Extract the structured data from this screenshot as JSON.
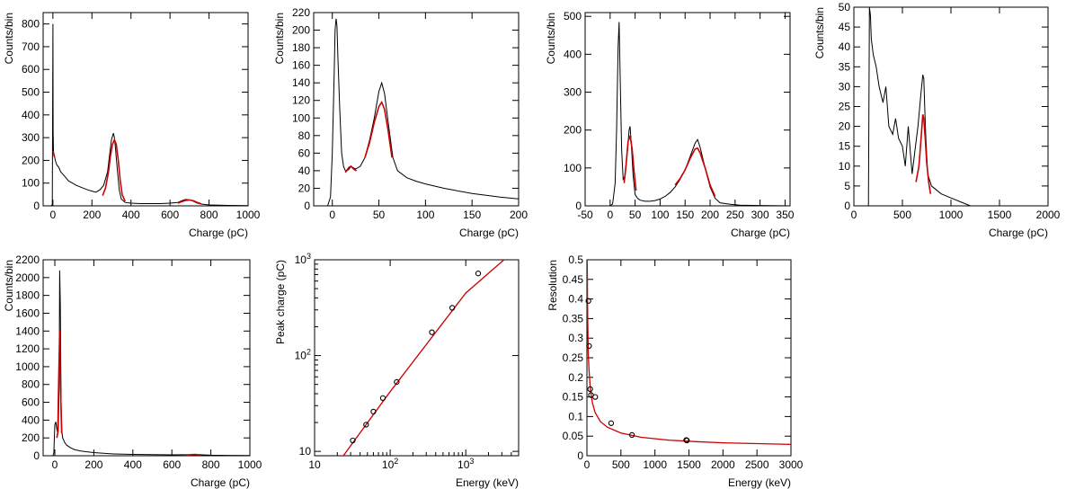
{
  "chart_data": [
    {
      "type": "line",
      "xlabel": "Charge (pC)",
      "ylabel": "Counts/bin",
      "xlim": [
        -50,
        1000
      ],
      "ylim": [
        0,
        850
      ],
      "x_ticks": [
        0,
        200,
        400,
        600,
        800,
        1000
      ],
      "y_ticks": [
        0,
        100,
        200,
        300,
        400,
        500,
        600,
        700,
        800
      ],
      "series": [
        {
          "role": "histogram",
          "color": "#000000",
          "x": [
            -10,
            -3,
            0,
            1,
            3,
            5,
            8,
            12,
            20,
            30,
            40,
            60,
            80,
            100,
            120,
            150,
            180,
            200,
            220,
            240,
            260,
            280,
            290,
            300,
            310,
            315,
            320,
            330,
            340,
            350,
            370,
            400,
            450,
            500,
            550,
            600,
            640,
            660,
            680,
            700,
            720,
            740,
            760,
            800,
            900,
            1000
          ],
          "y": [
            0,
            5,
            800,
            330,
            240,
            230,
            220,
            200,
            180,
            170,
            150,
            130,
            110,
            100,
            90,
            80,
            70,
            65,
            60,
            70,
            90,
            150,
            220,
            290,
            320,
            300,
            260,
            160,
            70,
            30,
            15,
            12,
            10,
            10,
            10,
            12,
            15,
            22,
            28,
            26,
            20,
            12,
            8,
            4,
            2,
            1
          ]
        },
        {
          "role": "fit",
          "color": "#cc0000",
          "x": [
            255,
            270,
            285,
            295,
            305,
            315,
            325,
            335,
            345,
            355,
            370
          ],
          "y": [
            45,
            80,
            150,
            220,
            270,
            290,
            270,
            200,
            110,
            50,
            20
          ]
        },
        {
          "role": "fit",
          "color": "#cc0000",
          "x": [
            640,
            660,
            680,
            700,
            720,
            740,
            760
          ],
          "y": [
            12,
            18,
            24,
            26,
            22,
            15,
            9
          ]
        },
        {
          "role": "fit",
          "color": "#cc0000",
          "x": [
            1,
            3,
            5,
            8
          ],
          "y": [
            240,
            230,
            225,
            215
          ]
        }
      ]
    },
    {
      "type": "line",
      "xlabel": "Charge (pC)",
      "ylabel": "Counts/bin",
      "xlim": [
        -20,
        200
      ],
      "ylim": [
        0,
        220
      ],
      "x_ticks": [
        0,
        50,
        100,
        150,
        200
      ],
      "y_ticks": [
        0,
        20,
        40,
        60,
        80,
        100,
        120,
        140,
        160,
        180,
        200,
        220
      ],
      "series": [
        {
          "role": "histogram",
          "color": "#000000",
          "x": [
            -20,
            -5,
            -2,
            0,
            2,
            3,
            4,
            5,
            6,
            8,
            10,
            12,
            14,
            16,
            18,
            20,
            25,
            30,
            35,
            40,
            45,
            50,
            53,
            56,
            60,
            65,
            70,
            80,
            90,
            100,
            120,
            150,
            180,
            200
          ],
          "y": [
            0,
            0,
            10,
            60,
            150,
            200,
            213,
            205,
            170,
            110,
            60,
            45,
            40,
            40,
            42,
            45,
            42,
            45,
            55,
            75,
            100,
            130,
            140,
            128,
            95,
            55,
            40,
            32,
            28,
            25,
            20,
            14,
            10,
            8
          ]
        },
        {
          "role": "fit",
          "color": "#cc0000",
          "x": [
            14,
            16,
            18,
            20,
            22,
            24,
            26
          ],
          "y": [
            38,
            41,
            44,
            45,
            43,
            41,
            40
          ]
        },
        {
          "role": "fit",
          "color": "#cc0000",
          "x": [
            35,
            40,
            45,
            50,
            53,
            56,
            60,
            64
          ],
          "y": [
            55,
            72,
            95,
            113,
            118,
            110,
            85,
            55
          ]
        }
      ]
    },
    {
      "type": "line",
      "xlabel": "Charge (pC)",
      "ylabel": "Counts/bin",
      "xlim": [
        -50,
        360
      ],
      "ylim": [
        0,
        510
      ],
      "x_ticks": [
        -50,
        0,
        50,
        100,
        150,
        200,
        250,
        300,
        350
      ],
      "y_ticks": [
        0,
        100,
        200,
        300,
        400,
        500
      ],
      "series": [
        {
          "role": "histogram",
          "color": "#000000",
          "x": [
            -50,
            0,
            5,
            10,
            13,
            16,
            18,
            20,
            23,
            26,
            30,
            35,
            38,
            40,
            42,
            46,
            50,
            55,
            60,
            70,
            80,
            90,
            100,
            110,
            120,
            130,
            140,
            150,
            160,
            170,
            175,
            180,
            190,
            200,
            210,
            220,
            240,
            260,
            300,
            360
          ],
          "y": [
            0,
            0,
            5,
            60,
            200,
            420,
            485,
            350,
            150,
            70,
            80,
            150,
            200,
            210,
            170,
            80,
            30,
            20,
            15,
            12,
            12,
            14,
            18,
            25,
            35,
            50,
            70,
            95,
            130,
            165,
            175,
            155,
            100,
            50,
            20,
            8,
            4,
            2,
            1,
            0
          ]
        },
        {
          "role": "fit",
          "color": "#cc0000",
          "x": [
            28,
            32,
            36,
            40,
            44,
            48,
            52
          ],
          "y": [
            60,
            110,
            170,
            185,
            150,
            90,
            40
          ]
        },
        {
          "role": "fit",
          "color": "#cc0000",
          "x": [
            130,
            140,
            150,
            160,
            170,
            175,
            180,
            190,
            200,
            210
          ],
          "y": [
            55,
            72,
            95,
            125,
            150,
            152,
            140,
            100,
            55,
            25
          ]
        }
      ]
    },
    {
      "type": "line",
      "xlabel": "Charge (pC)",
      "ylabel": "Counts/bin",
      "xlim": [
        0,
        2000
      ],
      "ylim": [
        0,
        50
      ],
      "x_ticks": [
        0,
        500,
        1000,
        1500,
        2000
      ],
      "y_ticks": [
        0,
        5,
        10,
        15,
        20,
        25,
        30,
        35,
        40,
        45,
        50
      ],
      "series": [
        {
          "role": "histogram",
          "color": "#000000",
          "x": [
            0,
            150,
            160,
            170,
            180,
            200,
            230,
            260,
            300,
            330,
            360,
            400,
            430,
            460,
            500,
            530,
            560,
            600,
            630,
            660,
            690,
            710,
            720,
            730,
            740,
            760,
            800,
            850,
            900,
            1000,
            1100,
            1200,
            1500,
            2000
          ],
          "y": [
            0,
            0,
            50,
            48,
            42,
            38,
            35,
            30,
            26,
            30,
            20,
            18,
            22,
            17,
            15,
            10,
            20,
            8,
            14,
            20,
            28,
            33,
            32,
            25,
            18,
            8,
            5,
            4,
            3,
            2,
            1,
            0,
            0,
            0
          ]
        },
        {
          "role": "fit",
          "color": "#cc0000",
          "x": [
            640,
            670,
            695,
            710,
            720,
            735,
            750,
            770,
            790
          ],
          "y": [
            6,
            10,
            18,
            23,
            22,
            17,
            11,
            6,
            3
          ]
        }
      ]
    },
    {
      "type": "line",
      "xlabel": "Charge (pC)",
      "ylabel": "Counts/bin",
      "xlim": [
        -60,
        1000
      ],
      "ylim": [
        0,
        2200
      ],
      "x_ticks": [
        0,
        200,
        400,
        600,
        800,
        1000
      ],
      "y_ticks": [
        0,
        200,
        400,
        600,
        800,
        1000,
        1200,
        1400,
        1600,
        1800,
        2000,
        2200
      ],
      "series": [
        {
          "role": "histogram",
          "color": "#000000",
          "x": [
            -60,
            -10,
            -5,
            0,
            5,
            10,
            15,
            18,
            22,
            25,
            28,
            32,
            36,
            40,
            50,
            60,
            80,
            100,
            130,
            160,
            200,
            300,
            400,
            600,
            700,
            720,
            800,
            1000
          ],
          "y": [
            0,
            0,
            30,
            350,
            380,
            300,
            250,
            280,
            800,
            2080,
            1700,
            600,
            280,
            200,
            150,
            120,
            90,
            70,
            55,
            45,
            35,
            20,
            15,
            10,
            12,
            14,
            6,
            2
          ]
        },
        {
          "role": "fit",
          "color": "#cc0000",
          "x": [
            10,
            15,
            20,
            25,
            30,
            35
          ],
          "y": [
            200,
            260,
            900,
            1400,
            700,
            250
          ]
        },
        {
          "role": "fit",
          "color": "#cc0000",
          "x": [
            680,
            700,
            720,
            740
          ],
          "y": [
            8,
            12,
            14,
            9
          ]
        }
      ]
    },
    {
      "type": "scatter",
      "xlabel": "Energy (keV)",
      "ylabel": "Peak charge (pC)",
      "xscale": "log",
      "yscale": "log",
      "xlim": [
        10,
        5000
      ],
      "ylim": [
        9,
        1000
      ],
      "x_ticks": [
        10,
        100,
        1000
      ],
      "x_tick_labels": [
        "10",
        "10^2",
        "10^3"
      ],
      "y_ticks": [
        10,
        100,
        1000
      ],
      "y_tick_labels": [
        "10",
        "10^2",
        "10^3"
      ],
      "points": {
        "x": [
          32,
          48,
          60,
          80,
          122,
          356,
          662,
          1460
        ],
        "y": [
          13,
          19,
          26,
          36,
          53,
          175,
          315,
          720
        ]
      },
      "fit": {
        "color": "#cc0000",
        "x": [
          24,
          100,
          1000,
          3200
        ],
        "y": [
          9,
          42,
          450,
          1000
        ]
      }
    },
    {
      "type": "scatter",
      "xlabel": "Energy (keV)",
      "ylabel": "Resolution",
      "xlim": [
        0,
        3000
      ],
      "ylim": [
        0,
        0.5
      ],
      "x_ticks": [
        0,
        500,
        1000,
        1500,
        2000,
        2500,
        3000
      ],
      "y_ticks": [
        0,
        0.05,
        0.1,
        0.15,
        0.2,
        0.25,
        0.3,
        0.35,
        0.4,
        0.45,
        0.5
      ],
      "points": {
        "x": [
          22,
          32,
          48,
          60,
          122,
          356,
          662,
          1460,
          1470
        ],
        "y": [
          0.395,
          0.28,
          0.17,
          0.155,
          0.15,
          0.083,
          0.053,
          0.04,
          0.039
        ]
      },
      "fit": {
        "color": "#cc0000",
        "x": [
          3,
          5,
          8,
          12,
          20,
          30,
          50,
          80,
          120,
          200,
          300,
          500,
          800,
          1200,
          1600,
          2000,
          2500,
          3000
        ],
        "y": [
          0.5,
          0.48,
          0.41,
          0.34,
          0.26,
          0.22,
          0.17,
          0.135,
          0.11,
          0.087,
          0.073,
          0.058,
          0.047,
          0.04,
          0.036,
          0.033,
          0.031,
          0.029
        ]
      }
    }
  ]
}
